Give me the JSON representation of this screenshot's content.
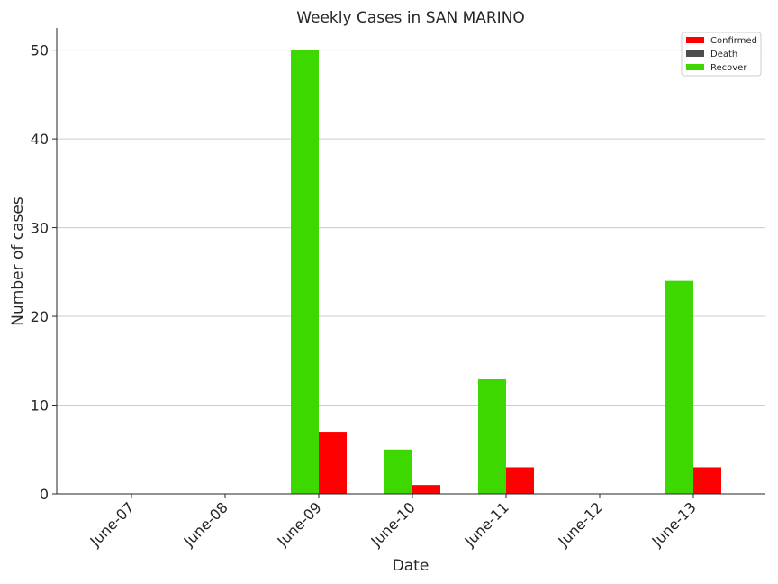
{
  "chart_data": {
    "type": "bar",
    "title": "Weekly Cases in SAN MARINO",
    "xlabel": "Date",
    "ylabel": "Number of cases",
    "categories": [
      "June-07",
      "June-08",
      "June-09",
      "June-10",
      "June-11",
      "June-12",
      "June-13"
    ],
    "series": [
      {
        "name": "Recover",
        "color": "#3dd800",
        "values": [
          0,
          0,
          50,
          5,
          13,
          0,
          24
        ]
      },
      {
        "name": "Confirmed",
        "color": "#ff0000",
        "values": [
          0,
          0,
          7,
          1,
          3,
          0,
          3
        ]
      },
      {
        "name": "Death",
        "color": "#4d4d4d",
        "values": [
          0,
          0,
          0,
          0,
          0,
          0,
          0
        ]
      }
    ],
    "legend_order": [
      "Confirmed",
      "Death",
      "Recover"
    ],
    "legend_position": "top-right",
    "ylim": [
      0,
      52.5
    ],
    "yticks": [
      0,
      10,
      20,
      30,
      40,
      50
    ],
    "grid": "horizontal",
    "xtick_rotation": 45
  }
}
